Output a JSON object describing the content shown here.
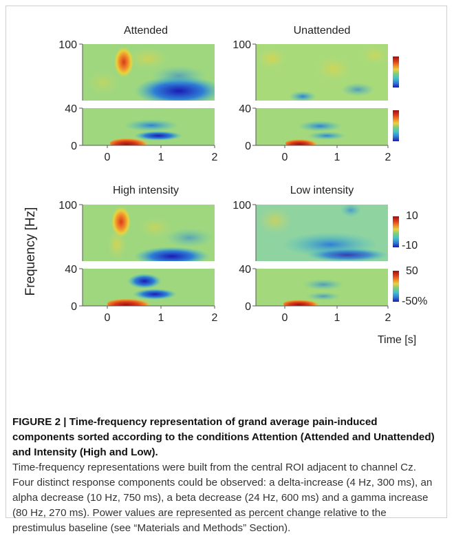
{
  "figure": {
    "y_axis_label": "Frequency [Hz]",
    "x_axis_label": "Time [s]",
    "panels": [
      {
        "title": "Attended"
      },
      {
        "title": "Unattended"
      },
      {
        "title": "High intensity"
      },
      {
        "title": "Low intensity"
      }
    ],
    "tick_labels": {
      "y_top": [
        "100",
        "40"
      ],
      "y_bottom": [
        "40",
        "0"
      ],
      "x": [
        "0",
        "1",
        "2"
      ]
    },
    "colorbars": {
      "top_range": [
        "10",
        "-10"
      ],
      "bottom_range": [
        "50",
        "-50%"
      ]
    },
    "colormap": [
      "#1b1bb5",
      "#2f7fd6",
      "#45c3c9",
      "#7fcf7a",
      "#c9d86a",
      "#e8d23c",
      "#f08a2a",
      "#d93a1a",
      "#9e1010"
    ]
  },
  "caption": {
    "title": "FIGURE 2 | Time-frequency representation of grand average pain-induced components sorted according to the conditions Attention (Attended and Unattended) and Intensity (High and Low).",
    "body": "Time-frequency representations were built from the central ROI adjacent to channel Cz. Four distinct response components could be observed: a delta-increase (4 Hz, 300 ms), an alpha decrease (10 Hz, 750 ms), a beta decrease (24 Hz, 600 ms) and a gamma increase (80 Hz, 270 ms). Power values are represented as percent change relative to the prestimulus baseline (see “Materials and Methods” Section)."
  }
}
